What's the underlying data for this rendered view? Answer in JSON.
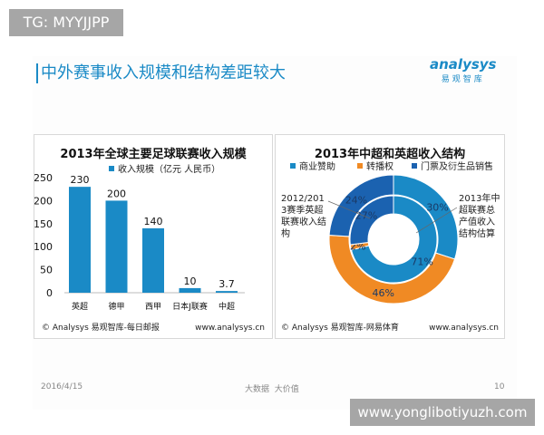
{
  "tag": "TG: MYYJJPP",
  "title": "中外赛事收入规模和结构差距较大",
  "logo": {
    "name": "analysys",
    "sub": "易观智库"
  },
  "footer": {
    "date": "2016/4/15",
    "slogan": "大数据  大价值",
    "page": "10"
  },
  "watermark": "www.yonglibotiyuzh.com",
  "colors": {
    "blue": "#1a8ac6",
    "orange": "#f08a24",
    "dark_blue": "#1b62b0",
    "accent": "#1a8ac6"
  },
  "chart_data": [
    {
      "type": "bar",
      "title": "2013年全球主要足球联赛收入规模",
      "categories": [
        "英超",
        "德甲",
        "西甲",
        "日本J联赛",
        "中超"
      ],
      "series": [
        {
          "name": "收入规模（亿元 人民币）",
          "values": [
            230,
            200,
            140,
            10,
            3.7
          ]
        }
      ],
      "yticks": [
        0,
        50,
        100,
        150,
        200,
        250
      ],
      "ylim": [
        0,
        250
      ],
      "grid": false,
      "legend": "top",
      "source": "© Analysys 易观智库-每日邮报",
      "site": "www.analysys.cn"
    },
    {
      "type": "pie",
      "subtype": "donut",
      "title": "2013年中超和英超收入结构",
      "categories": [
        "商业赞助",
        "转播权",
        "门票及衍生品销售"
      ],
      "series": [
        {
          "name": "2012/2013赛季英超联赛收入结构",
          "ring": "outer",
          "values": [
            30,
            46,
            24
          ]
        },
        {
          "name": "2013年中超联赛总产值收入结构估算",
          "ring": "inner",
          "values": [
            71,
            2,
            27
          ]
        }
      ],
      "annotations": [
        "2012/2013赛季英超联赛收入结构",
        "2013年中超联赛总产值收入结构估算"
      ],
      "annotation_lines": [
        [
          "2012/201",
          "3赛季英超",
          "联赛收入",
          "结构"
        ],
        [
          "2013年中",
          "超联赛总",
          "产值收入",
          "结构估算"
        ]
      ],
      "legend": "top",
      "source": "© Analysys 易观智库-网易体育",
      "site": "www.analysys.cn"
    }
  ]
}
